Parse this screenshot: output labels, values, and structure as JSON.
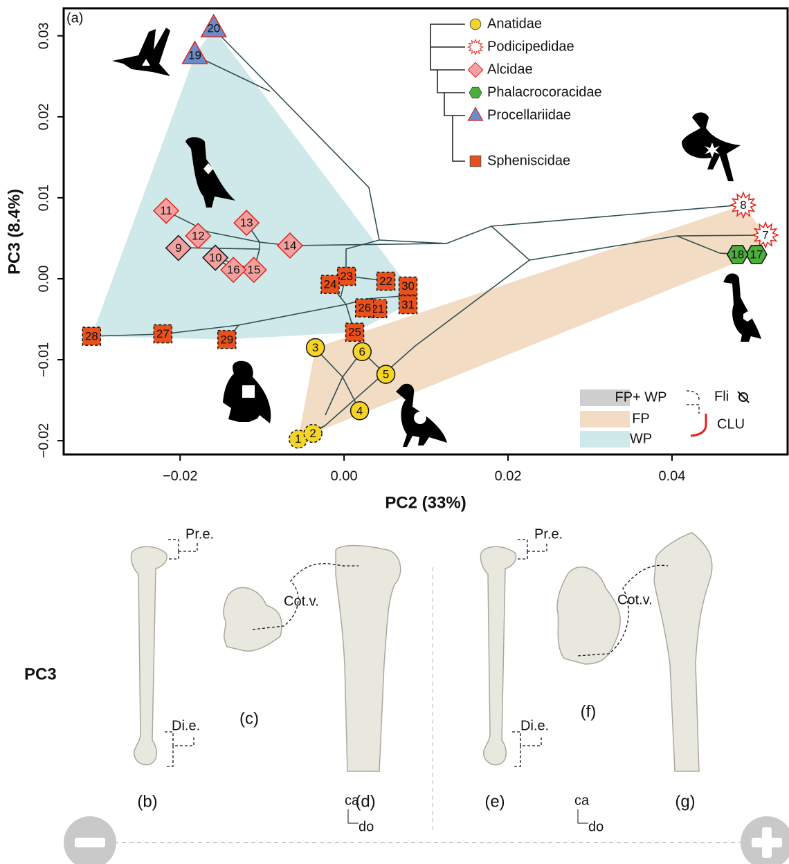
{
  "chart_data": {
    "type": "scatter",
    "panel_label": "(a)",
    "xlabel": "PC2 (33%)",
    "ylabel": "PC3 (8.4%)",
    "xlim": [
      -0.0342,
      0.0541
    ],
    "ylim": [
      -0.0217,
      0.0334
    ],
    "xticks": [
      {
        "value": -0.02,
        "label": "−0.02"
      },
      {
        "value": 0,
        "label": "0.00"
      },
      {
        "value": 0.02,
        "label": "0.02"
      },
      {
        "value": 0.04,
        "label": "0.04"
      }
    ],
    "yticks": [
      {
        "value": -0.02,
        "label": "−0.02"
      },
      {
        "value": -0.01,
        "label": "−0.01"
      },
      {
        "value": 0,
        "label": "0.00"
      },
      {
        "value": 0.01,
        "label": "0.01"
      },
      {
        "value": 0.02,
        "label": "0.02"
      },
      {
        "value": 0.03,
        "label": "0.03"
      }
    ],
    "series": [
      {
        "name": "Anatidae",
        "color": "#f5d327",
        "marker": "circle",
        "hull": "FP",
        "labels": [
          "1",
          "2",
          "3",
          "4",
          "5",
          "6"
        ],
        "x": [
          -0.0056,
          -0.0038,
          -0.0035,
          0.0019,
          0.0051,
          0.0022
        ],
        "y": [
          -0.0198,
          -0.0191,
          -0.0085,
          -0.0163,
          -0.0118,
          -0.009
        ],
        "flightless": [
          true,
          true,
          false,
          false,
          false,
          false
        ],
        "clu": [
          false,
          false,
          false,
          false,
          false,
          false
        ]
      },
      {
        "name": "Podicipedidae",
        "color": "#ffffff",
        "marker": "star",
        "hull": "FP",
        "labels": [
          "7",
          "8"
        ],
        "x": [
          0.0514,
          0.0487
        ],
        "y": [
          0.0054,
          0.0091
        ],
        "flightless": [
          false,
          false
        ],
        "clu": [
          true,
          true
        ]
      },
      {
        "name": "Alcidae",
        "color": "#f4a0a0",
        "marker": "diamond",
        "hull": "WP",
        "labels": [
          "9",
          "10",
          "11",
          "12",
          "13",
          "14",
          "15",
          "16"
        ],
        "x": [
          -0.0202,
          -0.0157,
          -0.0217,
          -0.0178,
          -0.0119,
          -0.0066,
          -0.011,
          -0.0135
        ],
        "y": [
          0.0038,
          0.0026,
          0.0084,
          0.0053,
          0.0069,
          0.0041,
          0.0011,
          0.0011
        ],
        "flightless": [
          false,
          false,
          false,
          false,
          false,
          false,
          false,
          false
        ],
        "clu": [
          false,
          false,
          true,
          true,
          true,
          true,
          true,
          true
        ]
      },
      {
        "name": "Phalacrocoracidae",
        "color": "#4caf3a",
        "marker": "hexagon",
        "hull": "FP",
        "labels": [
          "17",
          "18"
        ],
        "x": [
          0.0503,
          0.048
        ],
        "y": [
          0.003,
          0.003
        ],
        "flightless": [
          false,
          false
        ],
        "clu": [
          false,
          false
        ]
      },
      {
        "name": "Procellariidae",
        "color": "#6b8cc7",
        "marker": "triangle",
        "hull": "WP",
        "labels": [
          "19",
          "20"
        ],
        "x": [
          -0.0182,
          -0.0159
        ],
        "y": [
          0.0276,
          0.0309
        ],
        "flightless": [
          false,
          false
        ],
        "clu": [
          true,
          true
        ]
      },
      {
        "name": "Spheniscidae",
        "color": "#e8501c",
        "marker": "square",
        "hull": "WP",
        "labels": [
          "21",
          "22",
          "23",
          "24",
          "25",
          "26",
          "27",
          "28",
          "29",
          "30",
          "31"
        ],
        "x": [
          0.0041,
          0.0051,
          0.0003,
          -0.0017,
          0.0013,
          0.0025,
          -0.0221,
          -0.0308,
          -0.0143,
          0.0078,
          0.0078
        ],
        "y": [
          -0.0037,
          -0.0003,
          0.0003,
          -0.0007,
          -0.0066,
          -0.0036,
          -0.0068,
          -0.0071,
          -0.0075,
          -0.0009,
          -0.0032
        ],
        "flightless": [
          true,
          true,
          true,
          true,
          true,
          true,
          true,
          true,
          true,
          true,
          true
        ],
        "clu": [
          false,
          false,
          false,
          false,
          false,
          false,
          false,
          false,
          false,
          false,
          false
        ]
      }
    ],
    "hulls": [
      {
        "name": "FP+ WP",
        "color": "#cfcfcf"
      },
      {
        "name": "FP",
        "color": "#f3dcc4"
      },
      {
        "name": "WP",
        "color": "#cfe8e9"
      }
    ],
    "flightless_label": "Fli",
    "clu_label": "CLU",
    "clu_color": "#e0231c"
  },
  "lower_panel": {
    "row_label": "PC3",
    "negative": {
      "labels": [
        "Pr.e.",
        "Cot.v.",
        "Di.e."
      ],
      "panels": [
        "(b)",
        "(c)",
        "(d)"
      ],
      "orientation": [
        "ca",
        "do"
      ]
    },
    "positive": {
      "labels": [
        "Pr.e.",
        "Cot.v.",
        "Di.e."
      ],
      "panels": [
        "(e)",
        "(f)",
        "(g)"
      ],
      "orientation": [
        "ca",
        "do"
      ]
    }
  }
}
